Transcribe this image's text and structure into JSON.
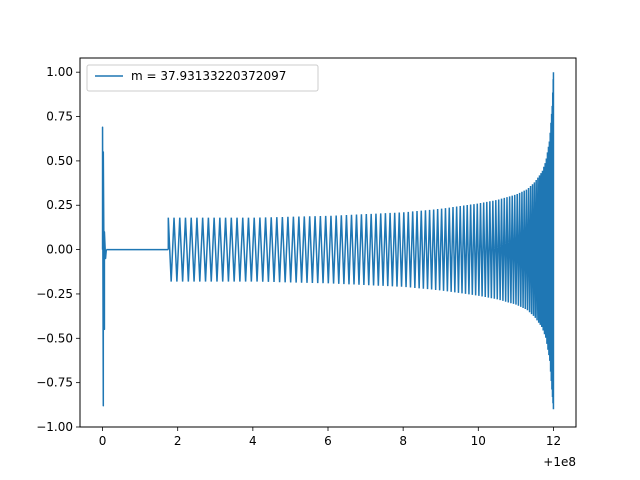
{
  "chart_data": {
    "type": "line",
    "title": "",
    "xlabel": "",
    "ylabel": "",
    "x_offset_label": "+1e8",
    "xlim": [
      -0.6,
      12.6
    ],
    "ylim": [
      -1.0,
      1.08
    ],
    "x_ticks": [
      0,
      2,
      4,
      6,
      8,
      10,
      12
    ],
    "y_ticks": [
      -1.0,
      -0.75,
      -0.5,
      -0.25,
      0.0,
      0.25,
      0.5,
      0.75,
      1.0
    ],
    "x_tick_labels": [
      "0",
      "2",
      "4",
      "6",
      "8",
      "10",
      "12"
    ],
    "y_tick_labels": [
      "−1.00",
      "−0.75",
      "−0.50",
      "−0.25",
      "0.00",
      "0.25",
      "0.50",
      "0.75",
      "1.00"
    ],
    "grid": false,
    "legend_position": "upper-left",
    "series": [
      {
        "name": "m = 37.93133220372097",
        "color": "#1f77b4",
        "segments": [
          {
            "x": [
              0.0,
              0.0,
              0.02,
              0.02,
              0.05,
              0.05,
              0.08,
              0.1
            ],
            "y": [
              0.0,
              0.69,
              -0.88,
              0.55,
              -0.45,
              0.1,
              -0.05,
              0.0
            ]
          },
          {
            "x": [
              0.1,
              1.75
            ],
            "y": [
              0.0,
              0.0
            ]
          }
        ],
        "envelope": {
          "x": [
            1.75,
            2.0,
            4.0,
            6.0,
            8.0,
            9.0,
            10.0,
            10.5,
            11.0,
            11.3,
            11.5,
            11.7,
            11.8,
            11.9,
            11.97,
            12.0
          ],
          "upper": [
            0.18,
            0.18,
            0.18,
            0.19,
            0.21,
            0.23,
            0.26,
            0.28,
            0.31,
            0.34,
            0.38,
            0.44,
            0.5,
            0.62,
            0.82,
            1.0
          ],
          "lower": [
            -0.18,
            -0.18,
            -0.18,
            -0.19,
            -0.21,
            -0.23,
            -0.26,
            -0.28,
            -0.31,
            -0.34,
            -0.38,
            -0.44,
            -0.5,
            -0.62,
            -0.82,
            -0.9
          ]
        }
      }
    ]
  }
}
